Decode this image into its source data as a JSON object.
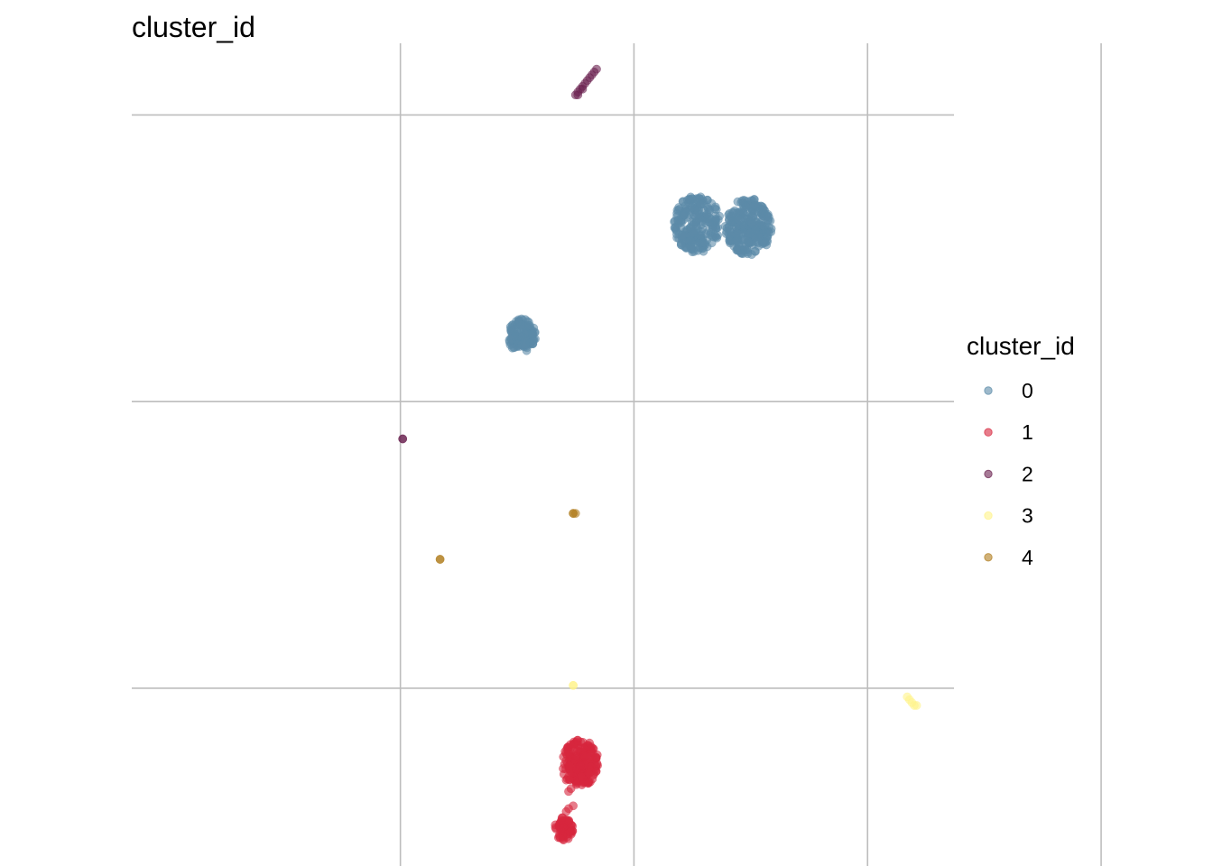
{
  "chart_data": {
    "type": "scatter",
    "title": "cluster_id",
    "xlabel": "",
    "ylabel": "",
    "xlim": [
      -1.15,
      2.37
    ],
    "ylim": [
      -1.62,
      1.25
    ],
    "grid": true,
    "axis_ticks_labeled": false,
    "legend": {
      "title": "cluster_id",
      "position": "right",
      "entries": [
        {
          "label": "0",
          "color": "#5b8ba8"
        },
        {
          "label": "1",
          "color": "#d7263d"
        },
        {
          "label": "2",
          "color": "#6b2250"
        },
        {
          "label": "3",
          "color": "#fff38a"
        },
        {
          "label": "4",
          "color": "#b07d1e"
        }
      ]
    },
    "groups": [
      {
        "series": "0",
        "kind": "blob",
        "cx": 1.27,
        "cy": 0.62,
        "r": 0.1,
        "n": 220
      },
      {
        "series": "0",
        "kind": "blob",
        "cx": 1.49,
        "cy": 0.61,
        "r": 0.1,
        "n": 260
      },
      {
        "series": "0",
        "kind": "blob",
        "cx": 0.52,
        "cy": 0.23,
        "r": 0.06,
        "n": 120
      },
      {
        "series": "1",
        "kind": "blob",
        "cx": 0.77,
        "cy": -1.26,
        "r": 0.08,
        "n": 200
      },
      {
        "series": "1",
        "kind": "blob",
        "cx": 0.7,
        "cy": -1.49,
        "r": 0.04,
        "n": 60
      },
      {
        "series": "1",
        "kind": "points",
        "xy": [
          [
            0.7,
            -1.3
          ],
          [
            0.71,
            -1.32
          ],
          [
            0.72,
            -1.36
          ],
          [
            0.73,
            -1.35
          ],
          [
            0.71,
            -1.43
          ],
          [
            0.72,
            -1.42
          ],
          [
            0.74,
            -1.41
          ],
          [
            0.69,
            -1.46
          ]
        ]
      },
      {
        "series": "2",
        "kind": "points",
        "xy": [
          [
            0.75,
            1.07
          ],
          [
            0.76,
            1.08
          ],
          [
            0.77,
            1.09
          ],
          [
            0.78,
            1.1
          ],
          [
            0.79,
            1.11
          ],
          [
            0.8,
            1.12
          ],
          [
            0.81,
            1.13
          ],
          [
            0.82,
            1.14
          ],
          [
            0.83,
            1.15
          ],
          [
            0.84,
            1.16
          ],
          [
            0.76,
            1.07
          ],
          [
            0.78,
            1.09
          ]
        ]
      },
      {
        "series": "2",
        "kind": "points",
        "xy": [
          [
            0.01,
            -0.13
          ],
          [
            0.01,
            -0.13
          ]
        ]
      },
      {
        "series": "3",
        "kind": "points",
        "xy": [
          [
            0.74,
            -0.99
          ],
          [
            0.74,
            -0.99
          ]
        ]
      },
      {
        "series": "3",
        "kind": "points",
        "xy": [
          [
            2.17,
            -1.03
          ],
          [
            2.18,
            -1.04
          ],
          [
            2.19,
            -1.05
          ],
          [
            2.2,
            -1.06
          ],
          [
            2.21,
            -1.06
          ]
        ]
      },
      {
        "series": "4",
        "kind": "points",
        "xy": [
          [
            0.74,
            -0.39
          ],
          [
            0.74,
            -0.39
          ],
          [
            0.75,
            -0.39
          ]
        ]
      },
      {
        "series": "4",
        "kind": "points",
        "xy": [
          [
            0.17,
            -0.55
          ],
          [
            0.17,
            -0.55
          ]
        ]
      }
    ]
  }
}
